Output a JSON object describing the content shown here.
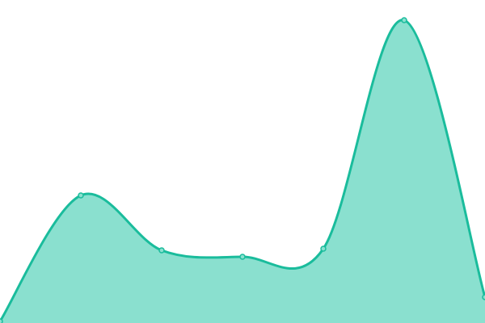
{
  "chart_data": {
    "type": "area",
    "curve": "smooth",
    "x": [
      0,
      1,
      2,
      3,
      4,
      5,
      6
    ],
    "series": [
      {
        "values": [
          2,
          158,
          90,
          82,
          92,
          375,
          32
        ]
      }
    ],
    "ylim": [
      0,
      400
    ],
    "grid": false,
    "legend": "none",
    "colors": {
      "line": "#1abc9c",
      "fill": "#8ae0cf",
      "marker_fill": "#8ae0cf"
    }
  }
}
